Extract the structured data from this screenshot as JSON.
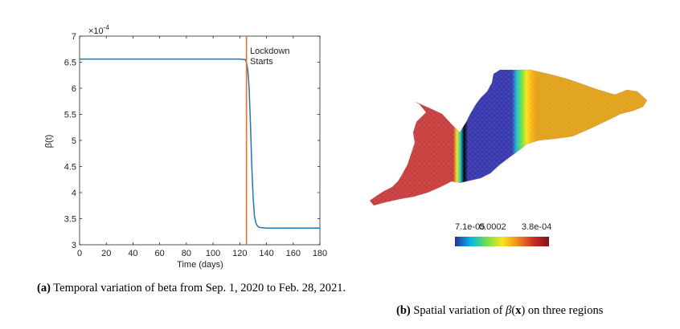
{
  "figure_a": {
    "chart_data": {
      "type": "line",
      "xlabel": "Time (days)",
      "ylabel": "β(t)",
      "y_multiplier": "×10",
      "y_exponent": "-4",
      "xlim": [
        0,
        180
      ],
      "ylim": [
        3,
        7
      ],
      "x_ticks": [
        "0",
        "20",
        "40",
        "60",
        "80",
        "100",
        "120",
        "140",
        "160",
        "180"
      ],
      "y_ticks": [
        "3",
        "3.5",
        "4",
        "4.5",
        "5",
        "5.5",
        "6",
        "6.5",
        "7"
      ],
      "series": [
        {
          "color": "#1f77b4",
          "x": [
            0,
            120,
            124,
            125,
            126,
            127,
            128,
            129,
            130,
            131,
            132,
            133,
            134,
            135,
            140,
            180
          ],
          "y": [
            6.56,
            6.56,
            6.55,
            6.5,
            6.35,
            6.0,
            5.3,
            4.5,
            3.9,
            3.55,
            3.42,
            3.37,
            3.34,
            3.33,
            3.32,
            3.32
          ]
        }
      ],
      "vline": {
        "x": 125,
        "color": "#ff6a1a"
      },
      "annotation": [
        "Lockdown",
        "Starts"
      ],
      "grid": false
    },
    "caption": {
      "label": "(a)",
      "text": "Temporal variation of beta from Sep. 1, 2020 to Feb. 28, 2021."
    }
  },
  "figure_b": {
    "colorbar": {
      "labels": [
        "7.1e-05",
        "0.0002",
        "3.8e-04"
      ],
      "colors": [
        "#2b2f9a",
        "#00b7e8",
        "#6fe04a",
        "#f4e61a",
        "#f08b1a",
        "#d22a2a",
        "#7a1414"
      ]
    },
    "region_colors": {
      "west": "#c94040",
      "central": "#3a3ab0",
      "east": "#e1a31c"
    },
    "caption": {
      "label": "(b)",
      "text_prefix": "Spatial variation of ",
      "beta": "β",
      "x_symbol": "x",
      "text_suffix": "on three regions"
    }
  }
}
